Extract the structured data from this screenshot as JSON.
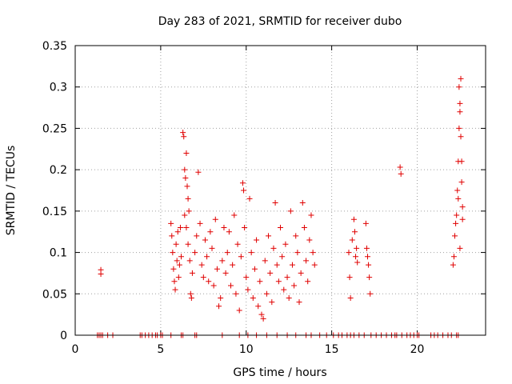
{
  "chart_data": {
    "type": "scatter",
    "title": "Day 283 of 2021, SRMTID for receiver dubo",
    "xlabel": "GPS time / hours",
    "ylabel": "SRMTID / TECUs",
    "xlim": [
      0,
      24
    ],
    "ylim": [
      0,
      0.35
    ],
    "xticks": [
      0,
      5,
      10,
      15,
      20
    ],
    "yticks": [
      0,
      0.05,
      0.1,
      0.15,
      0.2,
      0.25,
      0.3,
      0.35
    ],
    "xtick_labels": [
      "0",
      "5",
      "10",
      "15",
      "20"
    ],
    "ytick_labels": [
      "0",
      "0.05",
      "0.1",
      "0.15",
      "0.2",
      "0.25",
      "0.3",
      "0.35"
    ],
    "grid": true,
    "marker": "+",
    "series": [
      {
        "name": "SRMTID",
        "color": "#e00000",
        "points": [
          [
            1.5,
            0.079
          ],
          [
            1.5,
            0.074
          ],
          [
            5.6,
            0.135
          ],
          [
            5.65,
            0.12
          ],
          [
            5.7,
            0.1
          ],
          [
            5.75,
            0.08
          ],
          [
            5.8,
            0.065
          ],
          [
            5.85,
            0.055
          ],
          [
            5.9,
            0.11
          ],
          [
            5.95,
            0.09
          ],
          [
            6.0,
            0.125
          ],
          [
            6.05,
            0.07
          ],
          [
            6.1,
            0.085
          ],
          [
            6.15,
            0.13
          ],
          [
            6.2,
            0.095
          ],
          [
            6.3,
            0.245
          ],
          [
            6.35,
            0.24
          ],
          [
            6.4,
            0.2
          ],
          [
            6.45,
            0.19
          ],
          [
            6.5,
            0.22
          ],
          [
            6.55,
            0.18
          ],
          [
            6.6,
            0.165
          ],
          [
            6.65,
            0.15
          ],
          [
            6.4,
            0.145
          ],
          [
            6.5,
            0.13
          ],
          [
            6.6,
            0.11
          ],
          [
            6.7,
            0.09
          ],
          [
            6.75,
            0.05
          ],
          [
            6.8,
            0.045
          ],
          [
            6.85,
            0.075
          ],
          [
            7.0,
            0.1
          ],
          [
            7.1,
            0.12
          ],
          [
            7.2,
            0.197
          ],
          [
            7.3,
            0.135
          ],
          [
            7.4,
            0.085
          ],
          [
            7.5,
            0.07
          ],
          [
            7.6,
            0.115
          ],
          [
            7.7,
            0.095
          ],
          [
            7.8,
            0.065
          ],
          [
            7.9,
            0.125
          ],
          [
            8.0,
            0.105
          ],
          [
            8.1,
            0.06
          ],
          [
            8.2,
            0.14
          ],
          [
            8.3,
            0.08
          ],
          [
            8.4,
            0.035
          ],
          [
            8.5,
            0.045
          ],
          [
            8.6,
            0.09
          ],
          [
            8.7,
            0.13
          ],
          [
            8.8,
            0.075
          ],
          [
            8.9,
            0.1
          ],
          [
            9.0,
            0.125
          ],
          [
            9.1,
            0.06
          ],
          [
            9.2,
            0.085
          ],
          [
            9.3,
            0.145
          ],
          [
            9.4,
            0.05
          ],
          [
            9.5,
            0.11
          ],
          [
            9.6,
            0.03
          ],
          [
            9.7,
            0.095
          ],
          [
            9.8,
            0.184
          ],
          [
            9.85,
            0.175
          ],
          [
            9.9,
            0.13
          ],
          [
            10.0,
            0.07
          ],
          [
            10.1,
            0.055
          ],
          [
            10.2,
            0.165
          ],
          [
            10.3,
            0.1
          ],
          [
            10.4,
            0.045
          ],
          [
            10.5,
            0.08
          ],
          [
            10.6,
            0.115
          ],
          [
            10.7,
            0.035
          ],
          [
            10.8,
            0.065
          ],
          [
            10.9,
            0.025
          ],
          [
            11.0,
            0.02
          ],
          [
            11.1,
            0.09
          ],
          [
            11.2,
            0.05
          ],
          [
            11.3,
            0.12
          ],
          [
            11.4,
            0.075
          ],
          [
            11.5,
            0.04
          ],
          [
            11.6,
            0.105
          ],
          [
            11.7,
            0.16
          ],
          [
            11.8,
            0.085
          ],
          [
            11.9,
            0.065
          ],
          [
            12.0,
            0.13
          ],
          [
            12.1,
            0.095
          ],
          [
            12.2,
            0.055
          ],
          [
            12.3,
            0.11
          ],
          [
            12.4,
            0.07
          ],
          [
            12.5,
            0.045
          ],
          [
            12.6,
            0.15
          ],
          [
            12.7,
            0.085
          ],
          [
            12.8,
            0.06
          ],
          [
            12.9,
            0.12
          ],
          [
            13.0,
            0.1
          ],
          [
            13.1,
            0.04
          ],
          [
            13.2,
            0.075
          ],
          [
            13.3,
            0.16
          ],
          [
            13.4,
            0.13
          ],
          [
            13.5,
            0.09
          ],
          [
            13.6,
            0.065
          ],
          [
            13.7,
            0.115
          ],
          [
            13.8,
            0.145
          ],
          [
            13.9,
            0.1
          ],
          [
            14.0,
            0.085
          ],
          [
            16.0,
            0.1
          ],
          [
            16.05,
            0.07
          ],
          [
            16.1,
            0.045
          ],
          [
            16.2,
            0.115
          ],
          [
            16.3,
            0.14
          ],
          [
            16.35,
            0.125
          ],
          [
            16.4,
            0.095
          ],
          [
            16.45,
            0.105
          ],
          [
            16.5,
            0.088
          ],
          [
            17.0,
            0.135
          ],
          [
            17.05,
            0.105
          ],
          [
            17.1,
            0.095
          ],
          [
            17.15,
            0.085
          ],
          [
            17.2,
            0.07
          ],
          [
            17.25,
            0.05
          ],
          [
            19.0,
            0.203
          ],
          [
            19.05,
            0.195
          ],
          [
            22.1,
            0.085
          ],
          [
            22.15,
            0.095
          ],
          [
            22.2,
            0.12
          ],
          [
            22.25,
            0.135
          ],
          [
            22.3,
            0.145
          ],
          [
            22.35,
            0.175
          ],
          [
            22.4,
            0.21
          ],
          [
            22.45,
            0.25
          ],
          [
            22.5,
            0.28
          ],
          [
            22.55,
            0.31
          ],
          [
            22.45,
            0.3
          ],
          [
            22.5,
            0.27
          ],
          [
            22.55,
            0.24
          ],
          [
            22.6,
            0.21
          ],
          [
            22.6,
            0.185
          ],
          [
            22.65,
            0.155
          ],
          [
            22.65,
            0.14
          ],
          [
            22.5,
            0.105
          ],
          [
            22.4,
            0.165
          ]
        ]
      }
    ],
    "zero_points_x": [
      1.3,
      1.4,
      1.5,
      1.6,
      1.9,
      2.2,
      3.8,
      3.9,
      4.1,
      4.3,
      4.5,
      4.7,
      4.8,
      5.0,
      5.1,
      5.6,
      6.2,
      6.3,
      7.0,
      7.1,
      8.6,
      9.6,
      10.1,
      10.6,
      11.2,
      11.8,
      12.4,
      12.9,
      13.5,
      13.8,
      14.3,
      14.7,
      15.1,
      15.4,
      15.6,
      15.9,
      16.1,
      16.3,
      16.6,
      16.9,
      17.3,
      17.6,
      17.9,
      18.2,
      18.5,
      18.7,
      18.8,
      19.1,
      19.4,
      19.6,
      19.8,
      20.0,
      20.1,
      20.8,
      21.0,
      21.2,
      21.5,
      21.8,
      22.0,
      22.3,
      22.4
    ]
  }
}
